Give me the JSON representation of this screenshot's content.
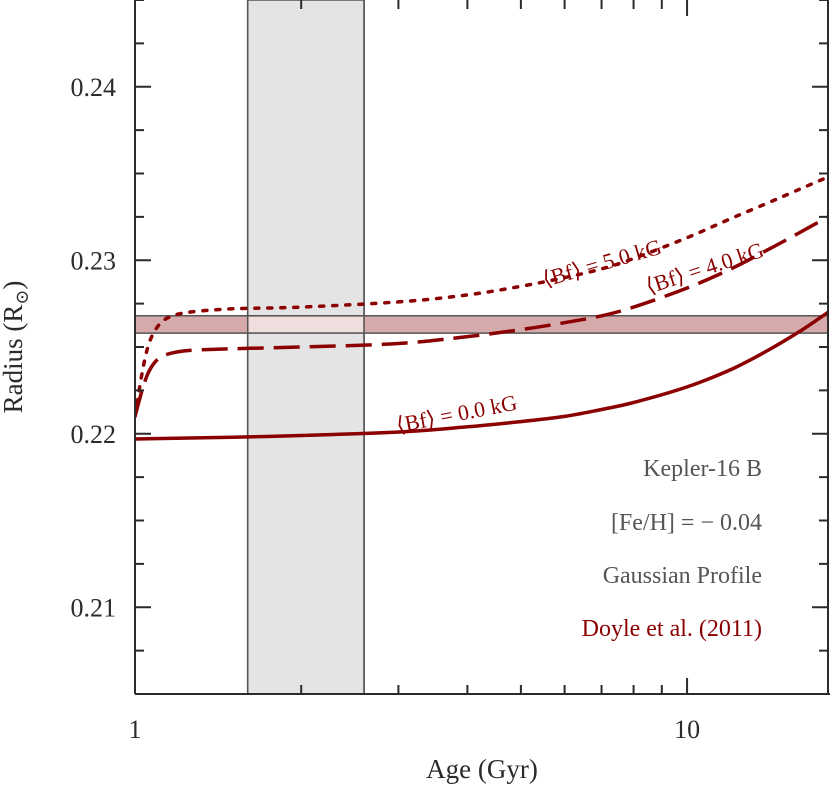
{
  "chart_data": {
    "type": "line",
    "xlabel": "Age (Gyr)",
    "ylabel": "Radius (R",
    "ylabel_sub": "⊙",
    "ylabel_close": ")",
    "xscale": "log",
    "xlim": [
      1.0,
      18.0
    ],
    "ylim": [
      0.205,
      0.245
    ],
    "xticks": [
      1,
      10
    ],
    "xticklabels": [
      "1",
      "10"
    ],
    "yticks": [
      0.21,
      0.22,
      0.23,
      0.24
    ],
    "yticklabels": [
      "0.21",
      "0.22",
      "0.23",
      "0.24"
    ],
    "grid": false,
    "age_band": [
      1.6,
      2.6
    ],
    "radius_band": [
      0.2258,
      0.2268
    ],
    "series": [
      {
        "label": "⟨Bf⟩ = 0.0 kG",
        "style": "solid",
        "x": [
          1.0,
          1.5,
          2.0,
          3.0,
          4.0,
          5.0,
          6.0,
          7.0,
          8.0,
          10.0,
          12.0,
          14.0,
          16.0,
          18.0
        ],
        "y": [
          0.2197,
          0.2198,
          0.2199,
          0.2201,
          0.2204,
          0.2207,
          0.221,
          0.2214,
          0.2218,
          0.2227,
          0.2237,
          0.2248,
          0.2259,
          0.227
        ]
      },
      {
        "label": "⟨Bf⟩ = 4.0 kG",
        "style": "dashed",
        "x": [
          1.0,
          1.03,
          1.06,
          1.1,
          1.15,
          1.25,
          1.5,
          2.0,
          3.0,
          4.0,
          5.0,
          6.0,
          7.0,
          8.0,
          10.0,
          12.0,
          14.0,
          16.0,
          18.0
        ],
        "y": [
          0.221,
          0.2225,
          0.2236,
          0.2243,
          0.2246,
          0.2248,
          0.2249,
          0.225,
          0.2252,
          0.2256,
          0.226,
          0.2264,
          0.2268,
          0.2273,
          0.2284,
          0.2295,
          0.2306,
          0.2316,
          0.2325
        ]
      },
      {
        "label": "⟨Bf⟩ = 5.0 kG",
        "style": "dotted",
        "x": [
          1.0,
          1.03,
          1.06,
          1.1,
          1.15,
          1.25,
          1.5,
          2.0,
          3.0,
          4.0,
          5.0,
          6.0,
          7.0,
          8.0,
          10.0,
          12.0,
          14.0,
          16.0,
          18.0
        ],
        "y": [
          0.221,
          0.2235,
          0.2252,
          0.2262,
          0.2267,
          0.227,
          0.2272,
          0.2273,
          0.2276,
          0.228,
          0.2285,
          0.229,
          0.2295,
          0.2301,
          0.2313,
          0.2324,
          0.2333,
          0.2341,
          0.2348
        ]
      }
    ],
    "annotations": [
      "Kepler-16 B",
      "[Fe/H] = − 0.04",
      "Gaussian Profile",
      "Doyle et al. (2011)"
    ],
    "colors": {
      "curve": "#8b0000",
      "band_fill": "#e4e4e4",
      "radius_band_fill": "#d6a9ab",
      "axis": "#2b2b2b",
      "note": "#555555"
    }
  }
}
